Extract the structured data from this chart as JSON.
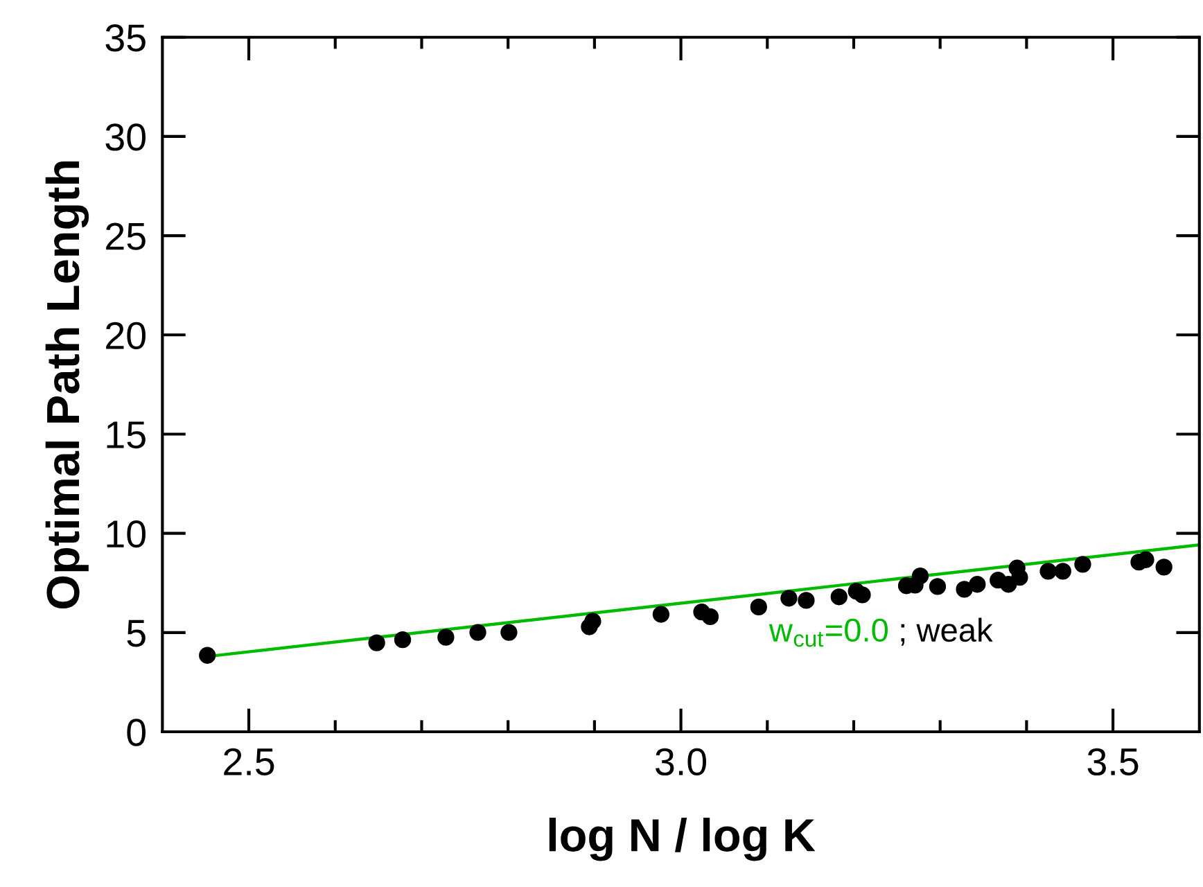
{
  "chart_data": {
    "type": "scatter",
    "xlabel": "log N / log K",
    "ylabel": "Optimal Path Length",
    "xlim": [
      2.4,
      3.6
    ],
    "ylim": [
      0,
      35
    ],
    "xticks": [
      {
        "value": 2.5,
        "label": "2.5"
      },
      {
        "value": 2.6,
        "label": null
      },
      {
        "value": 2.7,
        "label": null
      },
      {
        "value": 2.8,
        "label": null
      },
      {
        "value": 2.9,
        "label": null
      },
      {
        "value": 3.0,
        "label": "3.0"
      },
      {
        "value": 3.1,
        "label": null
      },
      {
        "value": 3.2,
        "label": null
      },
      {
        "value": 3.3,
        "label": null
      },
      {
        "value": 3.4,
        "label": null
      },
      {
        "value": 3.5,
        "label": "3.5"
      }
    ],
    "yticks": [
      0,
      5,
      10,
      15,
      20,
      25,
      30,
      35
    ],
    "grid": false,
    "annotations": [
      "w$_{cut}$=0.0",
      "; weak"
    ],
    "series": [
      {
        "marker": "circle",
        "color": "#000000",
        "x": [
          2.452,
          2.648,
          2.678,
          2.728,
          2.765,
          2.801,
          2.894,
          2.898,
          2.977,
          3.024,
          3.034,
          3.09,
          3.125,
          3.145,
          3.183,
          3.203,
          3.21,
          3.261,
          3.271,
          3.277,
          3.297,
          3.328,
          3.343,
          3.367,
          3.379,
          3.389,
          3.392,
          3.425,
          3.442,
          3.465,
          3.53,
          3.538,
          3.559
        ],
        "values": [
          3.85,
          4.48,
          4.64,
          4.76,
          5.01,
          5.01,
          5.29,
          5.57,
          5.92,
          6.04,
          5.8,
          6.29,
          6.73,
          6.62,
          6.8,
          7.08,
          6.9,
          7.36,
          7.39,
          7.85,
          7.32,
          7.18,
          7.43,
          7.64,
          7.43,
          8.25,
          7.78,
          8.09,
          8.09,
          8.44,
          8.55,
          8.67,
          8.3
        ]
      },
      {
        "type": "line",
        "marker": "none",
        "color": "#00bb00",
        "x": [
          2.457,
          3.6
        ],
        "values": [
          3.82,
          9.42
        ]
      }
    ]
  }
}
